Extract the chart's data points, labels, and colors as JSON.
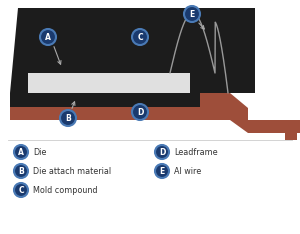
{
  "bg_color": "#ffffff",
  "mold_color": "#1c1c1c",
  "leadframe_color": "#9e4e3a",
  "die_color": "#e0e0e0",
  "label_circle_color": "#1a3a6e",
  "label_circle_edge": "#4a7ab5",
  "arrow_color": "#aaaaaa",
  "wire_color": "#999999",
  "legend_items": [
    {
      "letter": "A",
      "text": "Die",
      "col": 0
    },
    {
      "letter": "B",
      "text": "Die attach material",
      "col": 0
    },
    {
      "letter": "C",
      "text": "Mold compound",
      "col": 0
    },
    {
      "letter": "D",
      "text": "Leadframe",
      "col": 1
    },
    {
      "letter": "E",
      "text": "Al wire",
      "col": 1
    }
  ],
  "figsize": [
    3.0,
    2.34
  ],
  "dpi": 100
}
